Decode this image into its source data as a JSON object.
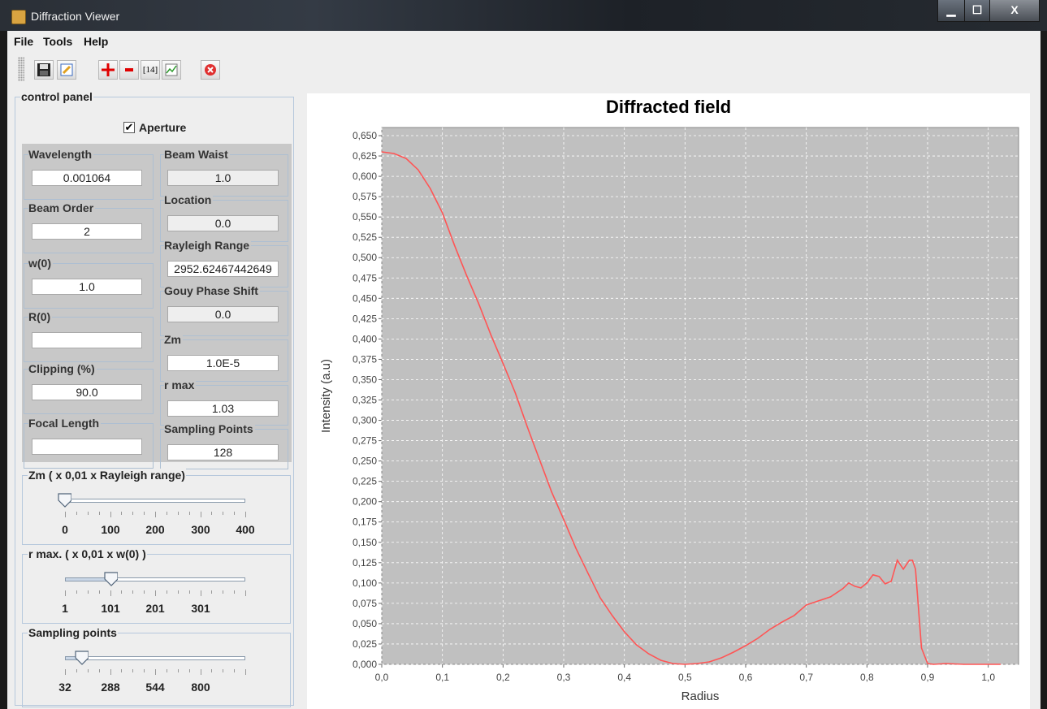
{
  "window": {
    "title": "Diffraction Viewer"
  },
  "menu": [
    "File",
    "Tools",
    "Help"
  ],
  "toolbar": {
    "labels_icon": "[14]"
  },
  "control_panel": {
    "title": "control panel",
    "aperture_label": "Aperture",
    "aperture_checked": true,
    "left_params": [
      {
        "label": "Wavelength",
        "value": "0.001064"
      },
      {
        "label": "Beam Order",
        "value": "2"
      },
      {
        "label": "w(0)",
        "value": "1.0"
      },
      {
        "label": "R(0)",
        "value": ""
      },
      {
        "label": "Clipping (%)",
        "value": "90.0"
      },
      {
        "label": "Focal Length",
        "value": ""
      }
    ],
    "right_params": [
      {
        "label": "Beam Waist",
        "value": "1.0"
      },
      {
        "label": "Location",
        "value": "0.0"
      },
      {
        "label": "Rayleigh Range",
        "value": "2952.62467442649"
      },
      {
        "label": "Gouy Phase Shift",
        "value": "0.0"
      },
      {
        "label": "Zm",
        "value": "1.0E-5"
      },
      {
        "label": "r max",
        "value": "1.03"
      },
      {
        "label": "Sampling Points",
        "value": "128"
      }
    ],
    "sliders": [
      {
        "title": "Zm ( x 0,01 x Rayleigh range)",
        "labels": [
          "0",
          "100",
          "200",
          "300",
          "400"
        ],
        "value": 0,
        "min": 0,
        "max": 400
      },
      {
        "title": "r max. ( x 0,01 x w(0) )",
        "labels": [
          "1",
          "101",
          "201",
          "301"
        ],
        "value": 103,
        "min": 1,
        "max": 401
      },
      {
        "title": "Sampling points",
        "labels": [
          "32",
          "288",
          "544",
          "800"
        ],
        "value": 128,
        "min": 32,
        "max": 1056
      }
    ]
  },
  "colors": {
    "plot_bg": "#c0c0c0",
    "series": "#ff5555",
    "accent": "#b6c8dc"
  },
  "chart_data": {
    "type": "line",
    "title": "Diffracted field",
    "xlabel": "Radius",
    "ylabel": "Intensity (a.u)",
    "xlim": [
      0,
      1.05
    ],
    "ylim": [
      0,
      0.66
    ],
    "xticks": [
      "0,0",
      "0,1",
      "0,2",
      "0,3",
      "0,4",
      "0,5",
      "0,6",
      "0,7",
      "0,8",
      "0,9",
      "1,0"
    ],
    "yticks": [
      "0,000",
      "0,025",
      "0,050",
      "0,075",
      "0,100",
      "0,125",
      "0,150",
      "0,175",
      "0,200",
      "0,225",
      "0,250",
      "0,275",
      "0,300",
      "0,325",
      "0,350",
      "0,375",
      "0,400",
      "0,425",
      "0,450",
      "0,475",
      "0,500",
      "0,525",
      "0,550",
      "0,575",
      "0,600",
      "0,625",
      "0,650"
    ],
    "grid": true,
    "series": [
      {
        "x": [
          0.0,
          0.02,
          0.04,
          0.06,
          0.08,
          0.1,
          0.12,
          0.14,
          0.16,
          0.18,
          0.2,
          0.22,
          0.24,
          0.26,
          0.28,
          0.3,
          0.32,
          0.34,
          0.36,
          0.38,
          0.4,
          0.42,
          0.44,
          0.46,
          0.48,
          0.5,
          0.52,
          0.54,
          0.56,
          0.58,
          0.6,
          0.62,
          0.64,
          0.66,
          0.68,
          0.7,
          0.72,
          0.74,
          0.76,
          0.77,
          0.78,
          0.79,
          0.8,
          0.81,
          0.82,
          0.83,
          0.84,
          0.85,
          0.86,
          0.87,
          0.875,
          0.88,
          0.89,
          0.9,
          0.91,
          0.93,
          0.96,
          1.0,
          1.02
        ],
        "y": [
          0.63,
          0.628,
          0.622,
          0.608,
          0.585,
          0.555,
          0.515,
          0.478,
          0.443,
          0.405,
          0.37,
          0.334,
          0.292,
          0.252,
          0.212,
          0.178,
          0.143,
          0.112,
          0.082,
          0.06,
          0.04,
          0.024,
          0.013,
          0.005,
          0.001,
          0.0,
          0.001,
          0.003,
          0.008,
          0.015,
          0.023,
          0.032,
          0.043,
          0.052,
          0.06,
          0.073,
          0.078,
          0.083,
          0.093,
          0.1,
          0.096,
          0.094,
          0.1,
          0.11,
          0.108,
          0.099,
          0.102,
          0.128,
          0.117,
          0.128,
          0.128,
          0.117,
          0.02,
          0.001,
          0.0,
          0.001,
          0.0,
          0.0,
          0.0
        ]
      }
    ]
  }
}
